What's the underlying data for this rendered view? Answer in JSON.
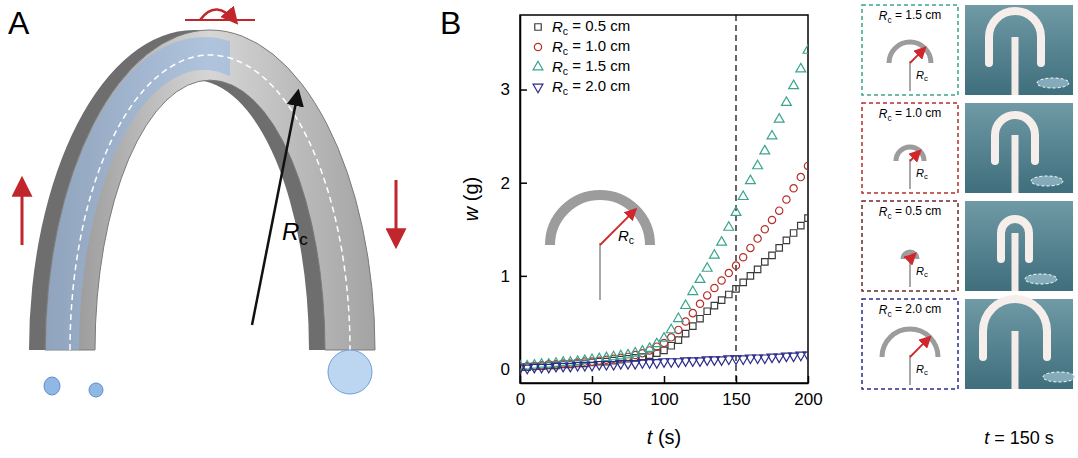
{
  "panel_a": {
    "letter": "A",
    "label": "Rc"
  },
  "chart_data": {
    "type": "scatter",
    "panel_letter": "B",
    "x_label": "t (s)",
    "y_label": "w (g)",
    "inset_label": "Rc",
    "xlim": [
      0,
      200
    ],
    "ylim": [
      -0.15,
      3.8
    ],
    "xticks": [
      0,
      50,
      100,
      150,
      200
    ],
    "yticks": [
      0,
      1,
      2,
      3
    ],
    "legend": "upper left",
    "vlines": [
      150
    ],
    "x": [
      0,
      5,
      10,
      15,
      20,
      25,
      30,
      35,
      40,
      45,
      50,
      55,
      60,
      65,
      70,
      75,
      80,
      85,
      90,
      95,
      100,
      105,
      110,
      115,
      120,
      125,
      130,
      135,
      140,
      145,
      150,
      155,
      160,
      165,
      170,
      175,
      180,
      185,
      190,
      195,
      200
    ],
    "series": [
      {
        "name": "Rc = 0.5 cm",
        "color": "#3b3b3b",
        "marker": "square",
        "values": [
          0.02,
          0.02,
          0.03,
          0.03,
          0.04,
          0.04,
          0.05,
          0.05,
          0.06,
          0.06,
          0.07,
          0.08,
          0.08,
          0.09,
          0.1,
          0.11,
          0.12,
          0.13,
          0.15,
          0.17,
          0.2,
          0.25,
          0.31,
          0.38,
          0.46,
          0.54,
          0.62,
          0.68,
          0.74,
          0.8,
          0.86,
          0.93,
          1.0,
          1.07,
          1.15,
          1.22,
          1.3,
          1.38,
          1.46,
          1.54,
          1.62
        ]
      },
      {
        "name": "Rc = 1.0 cm",
        "color": "#b5302a",
        "marker": "circle",
        "values": [
          0.02,
          0.03,
          0.03,
          0.04,
          0.05,
          0.05,
          0.06,
          0.06,
          0.07,
          0.08,
          0.08,
          0.09,
          0.1,
          0.11,
          0.12,
          0.13,
          0.15,
          0.17,
          0.2,
          0.24,
          0.28,
          0.34,
          0.42,
          0.51,
          0.6,
          0.7,
          0.79,
          0.87,
          0.95,
          1.03,
          1.11,
          1.2,
          1.3,
          1.4,
          1.5,
          1.6,
          1.7,
          1.82,
          1.94,
          2.06,
          2.18
        ]
      },
      {
        "name": "Rc = 1.5 cm",
        "color": "#3aa58f",
        "marker": "triangle",
        "values": [
          0.03,
          0.03,
          0.04,
          0.05,
          0.05,
          0.06,
          0.07,
          0.07,
          0.08,
          0.09,
          0.1,
          0.11,
          0.12,
          0.13,
          0.14,
          0.15,
          0.17,
          0.19,
          0.22,
          0.27,
          0.33,
          0.42,
          0.54,
          0.68,
          0.83,
          0.96,
          1.08,
          1.22,
          1.36,
          1.52,
          1.68,
          1.85,
          2.02,
          2.18,
          2.34,
          2.5,
          2.68,
          2.86,
          3.04,
          3.22,
          3.42
        ]
      },
      {
        "name": "Rc = 2.0 cm",
        "color": "#2c2c8c",
        "marker": "triangle-down",
        "values": [
          0.01,
          0.01,
          0.02,
          0.02,
          0.02,
          0.03,
          0.03,
          0.03,
          0.04,
          0.04,
          0.04,
          0.05,
          0.05,
          0.05,
          0.06,
          0.06,
          0.06,
          0.07,
          0.07,
          0.07,
          0.08,
          0.08,
          0.08,
          0.09,
          0.09,
          0.09,
          0.1,
          0.1,
          0.1,
          0.11,
          0.11,
          0.11,
          0.12,
          0.12,
          0.12,
          0.13,
          0.13,
          0.14,
          0.14,
          0.15,
          0.15
        ]
      }
    ]
  },
  "insets": [
    {
      "label": "Rc = 1.5 cm",
      "rc": 1.5,
      "symbol": "Rc",
      "color": "#3aa58f"
    },
    {
      "label": "Rc = 1.0 cm",
      "rc": 1.0,
      "symbol": "Rc",
      "color": "#b5302a"
    },
    {
      "label": "Rc = 0.5 cm",
      "rc": 0.5,
      "symbol": "Rc",
      "color": "#6b2a2a"
    },
    {
      "label": "Rc = 2.0 cm",
      "rc": 2.0,
      "symbol": "Rc",
      "color": "#2c2c8c"
    }
  ],
  "photo_caption": "t = 150 s"
}
